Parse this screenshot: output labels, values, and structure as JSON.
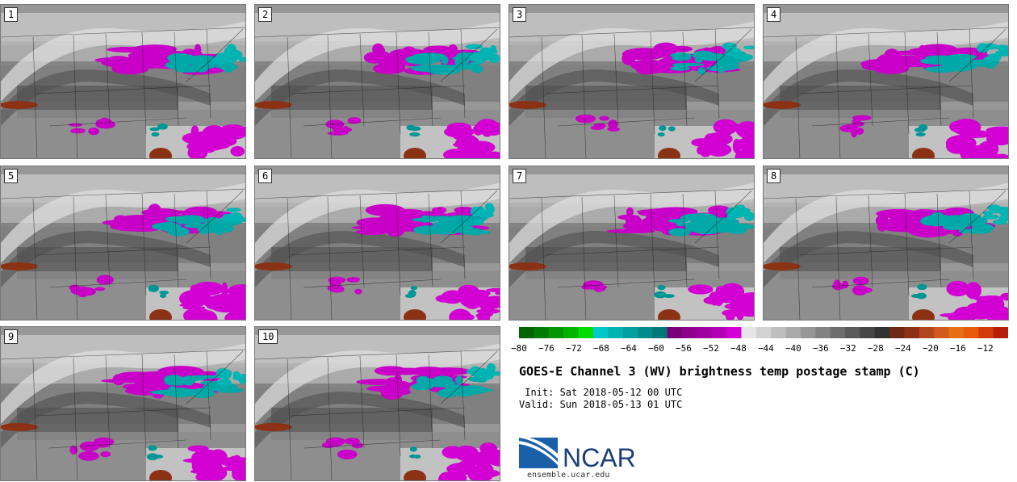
{
  "panels": [
    {
      "label": "1",
      "seed": 1
    },
    {
      "label": "2",
      "seed": 2
    },
    {
      "label": "3",
      "seed": 3
    },
    {
      "label": "4",
      "seed": 4
    },
    {
      "label": "5",
      "seed": 5
    },
    {
      "label": "6",
      "seed": 6
    },
    {
      "label": "7",
      "seed": 7
    },
    {
      "label": "8",
      "seed": 8
    },
    {
      "label": "9",
      "seed": 9
    },
    {
      "label": "10",
      "seed": 10
    }
  ],
  "colorbar": {
    "colors": [
      "#006400",
      "#007d00",
      "#009600",
      "#00b400",
      "#00dc00",
      "#00c8c8",
      "#00b4b4",
      "#00a0a0",
      "#008c8c",
      "#007878",
      "#780078",
      "#8c008c",
      "#a000a0",
      "#b400b4",
      "#d200d2",
      "#e6e6e6",
      "#d2d2d2",
      "#bebebe",
      "#aaaaaa",
      "#969696",
      "#828282",
      "#6e6e6e",
      "#5a5a5a",
      "#464646",
      "#323232",
      "#6e2814",
      "#8c3214",
      "#b4461e",
      "#d25a1e",
      "#e66e14",
      "#e65a0a",
      "#d23c0a",
      "#b41e0a"
    ],
    "ticks": [
      "−80",
      "−76",
      "−72",
      "−68",
      "−64",
      "−60",
      "−56",
      "−52",
      "−48",
      "−44",
      "−40",
      "−36",
      "−32",
      "−28",
      "−24",
      "−20",
      "−16",
      "−12"
    ]
  },
  "title": "GOES-E Channel 3 (WV) brightness temp postage stamp (C)",
  "init": " Init: Sat 2018-05-12 00 UTC",
  "valid": "Valid: Sun 2018-05-13 01 UTC",
  "logo_text": "NCAR",
  "site": "ensemble.ucar.edu"
}
